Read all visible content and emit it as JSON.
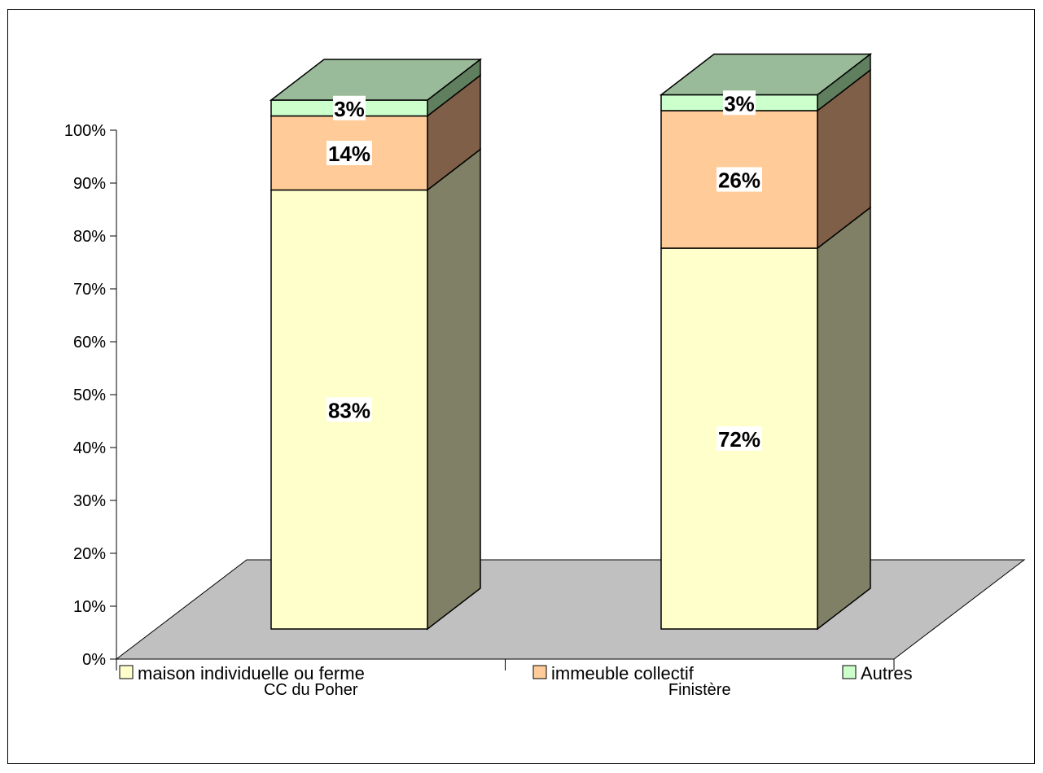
{
  "chart_data": {
    "type": "bar",
    "stacked": true,
    "three_d": true,
    "percent_stacked": true,
    "categories": [
      "CC du Poher",
      "Finistère"
    ],
    "series": [
      {
        "name": "maison individuelle ou ferme",
        "values": [
          83,
          72
        ],
        "labels": [
          "83%",
          "72%"
        ],
        "color": "#ffffcc",
        "side_color": "#808066"
      },
      {
        "name": "immeuble collectif",
        "values": [
          14,
          26
        ],
        "labels": [
          "14%",
          "26%"
        ],
        "color": "#ffcc99",
        "side_color": "#7f5f47"
      },
      {
        "name": "Autres",
        "values": [
          3,
          3
        ],
        "labels": [
          "3%",
          "3%"
        ],
        "color": "#ccffcc",
        "side_color": "#5f7f5f"
      }
    ],
    "y_ticks": [
      "0%",
      "10%",
      "20%",
      "30%",
      "40%",
      "50%",
      "60%",
      "70%",
      "80%",
      "90%",
      "100%"
    ],
    "ylim": [
      0,
      100
    ],
    "floor_color": "#c0c0c0",
    "top_color": "#99bb99",
    "grid": false,
    "legend_position": "bottom"
  }
}
